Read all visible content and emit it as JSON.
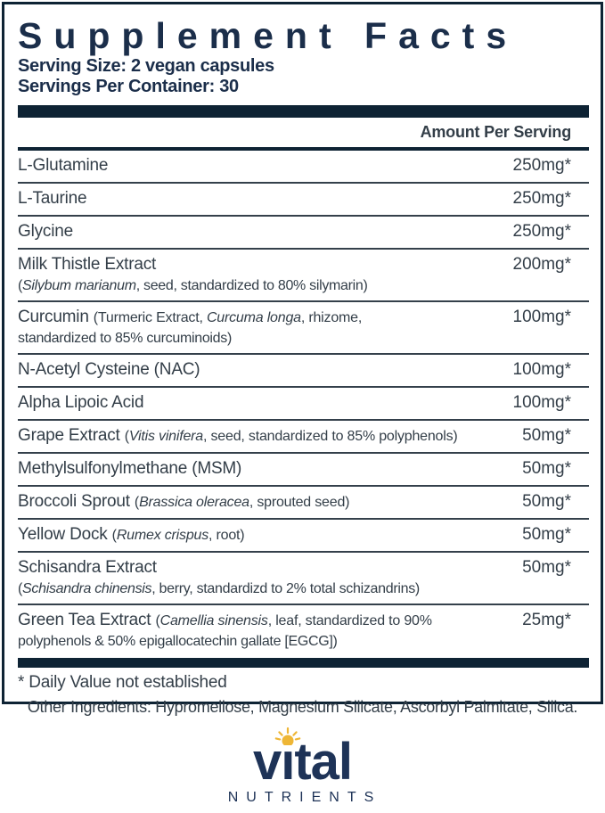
{
  "colors": {
    "navy": "#0e2334",
    "title-navy": "#1b2e4a",
    "text": "#333e48",
    "rule": "#34404b",
    "logo-navy": "#1e3357",
    "sun-gold": "#eeb636"
  },
  "panel": {
    "title": "Supplement Facts",
    "serving_size": "Serving Size: 2 vegan capsules",
    "servings_per_container": "Servings Per Container: 30",
    "amount_header": "Amount Per Serving",
    "footnote": "* Daily Value not established",
    "rows": [
      {
        "line1": [
          {
            "t": "L-Glutamine",
            "s": "n"
          }
        ],
        "amount": "250mg*"
      },
      {
        "line1": [
          {
            "t": "L-Taurine",
            "s": "n"
          }
        ],
        "amount": "250mg*"
      },
      {
        "line1": [
          {
            "t": "Glycine",
            "s": "n"
          }
        ],
        "amount": "250mg*"
      },
      {
        "line1": [
          {
            "t": "Milk Thistle Extract",
            "s": "n"
          }
        ],
        "line2": [
          {
            "t": "(",
            "s": "p"
          },
          {
            "t": "Silybum marianum",
            "s": "pi"
          },
          {
            "t": ", seed, standardized to 80% silymarin)",
            "s": "p"
          }
        ],
        "amount": "200mg*"
      },
      {
        "line1": [
          {
            "t": "Curcumin ",
            "s": "n"
          },
          {
            "t": "(Turmeric Extract, ",
            "s": "p"
          },
          {
            "t": "Curcuma longa",
            "s": "pi"
          },
          {
            "t": ", rhizome,",
            "s": "p"
          }
        ],
        "line2": [
          {
            "t": "standardized to 85% curcuminoids)",
            "s": "p"
          }
        ],
        "amount": "100mg*"
      },
      {
        "line1": [
          {
            "t": "N-Acetyl Cysteine (NAC)",
            "s": "n"
          }
        ],
        "amount": "100mg*"
      },
      {
        "line1": [
          {
            "t": "Alpha Lipoic Acid",
            "s": "n"
          }
        ],
        "amount": "100mg*"
      },
      {
        "line1": [
          {
            "t": "Grape Extract ",
            "s": "n"
          },
          {
            "t": "(",
            "s": "p"
          },
          {
            "t": "Vitis vinifera",
            "s": "pi"
          },
          {
            "t": ", seed, standardized to 85% polyphenols)",
            "s": "p"
          }
        ],
        "amount": "50mg*"
      },
      {
        "line1": [
          {
            "t": "Methylsulfonylmethane (MSM)",
            "s": "n"
          }
        ],
        "amount": "50mg*"
      },
      {
        "line1": [
          {
            "t": "Broccoli Sprout ",
            "s": "n"
          },
          {
            "t": "(",
            "s": "p"
          },
          {
            "t": "Brassica oleracea",
            "s": "pi"
          },
          {
            "t": ", sprouted seed)",
            "s": "p"
          }
        ],
        "amount": "50mg*"
      },
      {
        "line1": [
          {
            "t": "Yellow Dock ",
            "s": "n"
          },
          {
            "t": "(",
            "s": "p"
          },
          {
            "t": "Rumex crispus",
            "s": "pi"
          },
          {
            "t": ", root)",
            "s": "p"
          }
        ],
        "amount": "50mg*"
      },
      {
        "line1": [
          {
            "t": "Schisandra Extract",
            "s": "n"
          }
        ],
        "line2": [
          {
            "t": "(",
            "s": "p"
          },
          {
            "t": "Schisandra chinensis",
            "s": "pi"
          },
          {
            "t": ", berry, standardizd to 2% total schizandrins)",
            "s": "p"
          }
        ],
        "amount": "50mg*"
      },
      {
        "line1": [
          {
            "t": "Green Tea Extract ",
            "s": "n"
          },
          {
            "t": "(",
            "s": "p"
          },
          {
            "t": "Camellia sinensis",
            "s": "pi"
          },
          {
            "t": ", leaf, standardized to 90%",
            "s": "p"
          }
        ],
        "line2": [
          {
            "t": "polyphenols & 50% epigallocatechin gallate [EGCG])",
            "s": "p"
          }
        ],
        "amount": "25mg*"
      }
    ]
  },
  "other_ingredients": "Other Ingredients: Hypromellose, Magnesium Silicate, Ascorbyl Palmitate, Silica.",
  "logo": {
    "wordmark": "vital",
    "wordmark_parts": [
      "v",
      "ı",
      "tal"
    ],
    "subtext": "NUTRIENTS"
  }
}
